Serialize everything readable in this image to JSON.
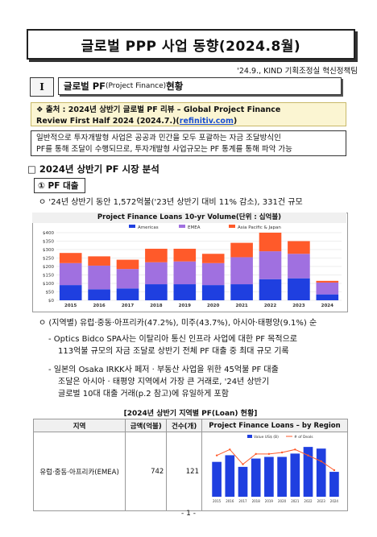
{
  "title": "글로벌 PPP 사업 동향(2024.8월)",
  "dept": "'24.9., KIND 기획조정실 혁신정책팀",
  "section": {
    "num": "I",
    "label_a": "글로벌 PF",
    "label_b": "(Project Finance)",
    "label_c": " 현황"
  },
  "source": {
    "line1": "❖ 출처 : 2024년 상반기 글로벌 PF 리뷰 – Global Project Finance",
    "line2": "Review First Half 2024 (2024.7.)(",
    "link": "refinitiv.com",
    "line2_end": ")"
  },
  "intro": {
    "l1": "일반적으로 투자개발형 사업은 공공과 민간을 모두 포괄하는 자금 조달방식인",
    "l2": "PF를 통해 조달이 수행되므로, 투자개발형 사업규모는 PF 통계를 통해 파악 가능"
  },
  "h2": "□ 2024년 상반기 PF 시장 분석",
  "h3": "① PF 대출",
  "bullet1": "ㅇ '24년 상반기 동안 1,572억불('23년 상반기 대비 11% 감소), 331건 규모",
  "bullet2": "ㅇ (지역별) 유럽·중동·아프리카(47.2%), 미주(43.7%), 아시아·태평양(9.1%) 순",
  "dash1": {
    "l1": "- Optics Bidco SPA사는 이탈리아 통신 인프라 사업에 대한 PF 목적으로",
    "l2": "113억불 규모의 자금 조달로 상반기 전체 PF 대출 중 최대 규모 기록"
  },
  "dash2": {
    "l1": "- 일본의 Osaka IRKK사 페저 · 부동산 사업을 위한 45억불 PF 대출",
    "l2": "조달은 아시아 · 태평양 지역에서 가장 큰 거래로, '24년 상반기",
    "l3": "글로벌 10대 대출 거래(p.2 참고)에 유일하게 포함"
  },
  "table": {
    "caption": "[2024년 상반기 지역별 PF(Loan) 현황]",
    "headers": [
      "지역",
      "금액(억불)",
      "건수(개)",
      "Project Finance Loans – by Region"
    ],
    "rows": [
      {
        "region": "유럽·중동·아프리카(EMEA)",
        "amount": "742",
        "count": "121"
      }
    ]
  },
  "page": "- 1 -",
  "colors": {
    "americas": "#1f3fe0",
    "emea": "#a070e0",
    "apac": "#ff5a2a"
  },
  "chart_data": [
    {
      "type": "bar",
      "title": "Project Finance Loans 10-yr Volume(단위 : 십억불)",
      "legend": [
        "Americas",
        "EMEA",
        "Asia Pacific & Japan"
      ],
      "categories": [
        "2015",
        "2016",
        "2017",
        "2018",
        "2019",
        "2020",
        "2021",
        "2022",
        "2023",
        "2024"
      ],
      "y_ticks": [
        "$0",
        "$50",
        "$100",
        "$150",
        "$200",
        "$250",
        "$300",
        "$350",
        "$400"
      ],
      "ylim": [
        0,
        400
      ],
      "series": [
        {
          "name": "Americas",
          "values": [
            90,
            65,
            70,
            95,
            95,
            90,
            95,
            125,
            130,
            35
          ]
        },
        {
          "name": "EMEA",
          "values": [
            130,
            140,
            115,
            130,
            135,
            130,
            160,
            165,
            145,
            70
          ]
        },
        {
          "name": "Asia Pacific & Japan",
          "values": [
            60,
            55,
            55,
            80,
            75,
            55,
            85,
            110,
            75,
            10
          ]
        }
      ]
    },
    {
      "type": "bar",
      "title": "Project Finance Loans – by Region",
      "legend": [
        "Value US$ (B)",
        "# of Deals"
      ],
      "categories": [
        "2015",
        "2016",
        "2017",
        "2018",
        "2019",
        "2020",
        "2021",
        "2022",
        "2023",
        "2024"
      ],
      "series": [
        {
          "name": "Value US$ (B)",
          "values": [
            105,
            125,
            90,
            115,
            120,
            120,
            130,
            150,
            145,
            75
          ]
        },
        {
          "name": "# of Deals",
          "values": [
            140,
            160,
            110,
            145,
            145,
            150,
            160,
            140,
            120,
            90
          ]
        }
      ]
    }
  ]
}
